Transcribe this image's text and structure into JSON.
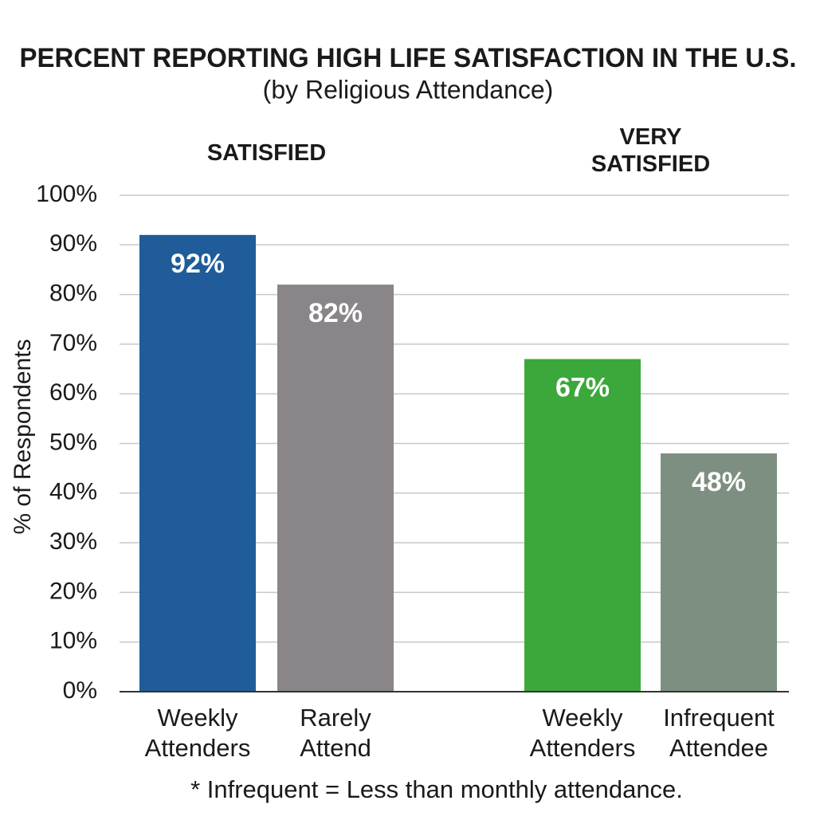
{
  "chart_data": {
    "type": "bar",
    "title": "PERCENT REPORTING HIGH LIFE SATISFACTION IN THE U.S.",
    "subtitle": "(by Religious Attendance)",
    "group_labels": [
      "SATISFIED",
      "VERY SATISFIED"
    ],
    "y_label": "% of Respondents",
    "categories": [
      "Weekly Attenders",
      "Rarely Attend",
      "Weekly Attenders",
      "Infrequent Attendee"
    ],
    "values": [
      92,
      82,
      67,
      48
    ],
    "value_labels": [
      "92%",
      "82%",
      "67%",
      "48%"
    ],
    "colors": [
      "#1f5c99",
      "#898589",
      "#3aa83a",
      "#7d8f80"
    ],
    "ylim": [
      0,
      100
    ],
    "yticks": [
      {
        "value": 0,
        "label": "0%"
      },
      {
        "value": 10,
        "label": "10%"
      },
      {
        "value": 20,
        "label": "20%"
      },
      {
        "value": 30,
        "label": "30%"
      },
      {
        "value": 40,
        "label": "40%"
      },
      {
        "value": 50,
        "label": "50%"
      },
      {
        "value": 60,
        "label": "60%"
      },
      {
        "value": 70,
        "label": "70%"
      },
      {
        "value": 80,
        "label": "80%"
      },
      {
        "value": 90,
        "label": "90%"
      },
      {
        "value": 100,
        "label": "100%"
      }
    ],
    "grid": true,
    "footnote": "* Infrequent = Less than monthly attendance."
  }
}
